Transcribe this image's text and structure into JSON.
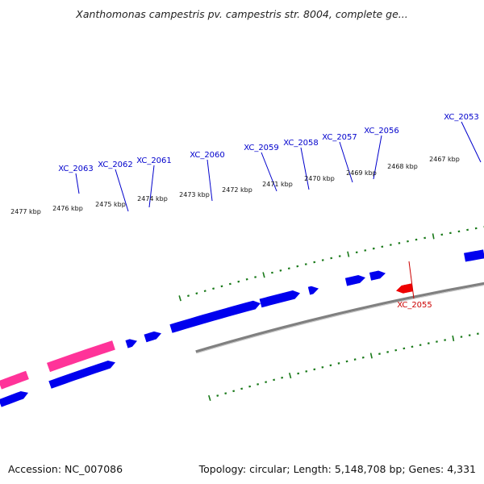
{
  "title": "Xanthomonas campestris pv. campestris str. 8004, complete ge...",
  "footer": {
    "accession": "Accession: NC_007086",
    "summary": "Topology: circular; Length: 5,148,708 bp; Genes: 4,331"
  },
  "colors": {
    "plus_strand": "#0000ee",
    "minus_strand": "#ee0000",
    "pink_feature": "#ff3399",
    "tick": "#1a7a1a",
    "backbone": "#808080",
    "label_plus": "#0000cc",
    "label_minus": "#cc0000"
  },
  "chart_data": {
    "type": "genome-map",
    "scale_labels": [
      "2477 kbp",
      "2476 kbp",
      "2475 kbp",
      "2474 kbp",
      "2473 kbp",
      "2472 kbp",
      "2471 kbp",
      "2470 kbp",
      "2469 kbp",
      "2468 kbp",
      "2467 kbp"
    ],
    "genes_plus": [
      "XC_2063",
      "XC_2062",
      "XC_2061",
      "XC_2060",
      "XC_2059",
      "XC_2058",
      "XC_2057",
      "XC_2056",
      "XC_2053"
    ],
    "genes_minus": [
      "XC_2055"
    ]
  }
}
